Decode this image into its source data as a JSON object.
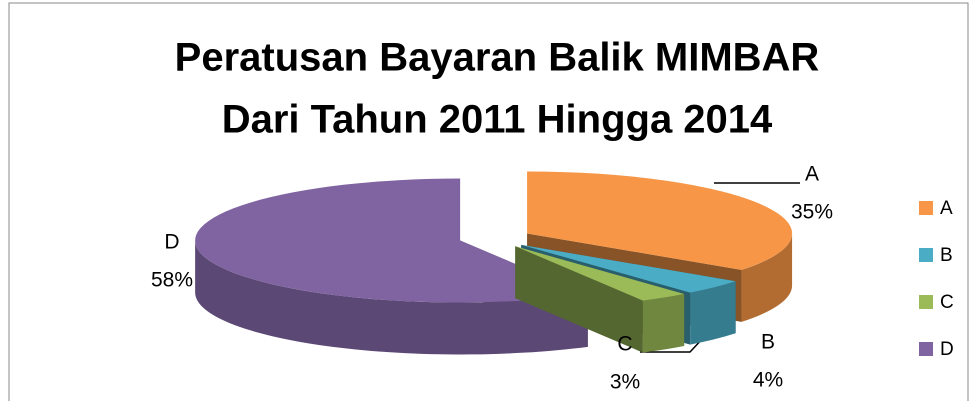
{
  "chart_data": {
    "type": "pie",
    "title": [
      "Peratusan Bayaran Balik MIMBAR",
      "Dari Tahun 2011 Hingga 2014"
    ],
    "categories": [
      "A",
      "B",
      "C",
      "D"
    ],
    "values": [
      35,
      4,
      3,
      58
    ],
    "value_labels": [
      "35%",
      "4%",
      "3%",
      "58%"
    ],
    "colors": [
      "#f79646",
      "#4bacc6",
      "#9bbb59",
      "#8064a2"
    ],
    "legend": "right"
  }
}
